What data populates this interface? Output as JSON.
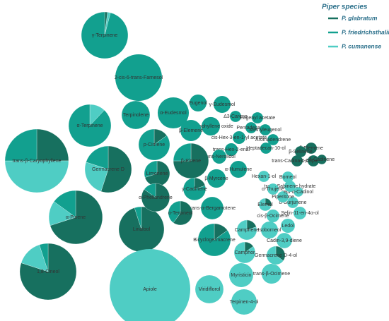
{
  "chart_data": {
    "type": "pie-bubbles",
    "legend_title": "Piper species",
    "legend_position": "top-right",
    "categories": [
      "γ-Terpinene",
      "2-cis-6-trans-Farnesol",
      "α-Terpinene",
      "trans-β-Caryophyllene",
      "Germacrene D",
      "α-Pinene",
      "1,8-Cineol",
      "Linalool",
      "Apiole",
      "Viridiflorol",
      "Terpinen-4-ol",
      "Myristicin",
      "trans-β-Ocimene",
      "Camphor",
      "Germacrene D-4-ol",
      "Cadin-3,9-diene",
      "Bicyclogermacrene",
      "Camphene",
      "Isoborneol",
      "Ledol",
      "Selin-11-en-4α-ol",
      "cis-β-Ocimene",
      "Elemol",
      "α-Gurjunene",
      "Piperitone",
      "epi-α-Cadinol",
      "trans-Sabinene hydrate",
      "α-Thujene",
      "Borneol",
      "Hexan-1-ol",
      "Eugenol",
      "γ-Eudesmol",
      "Terpinolene",
      "α-Eudesmol",
      "Δ3-Carene",
      "Eugenyl acetate",
      "Caryophyllene oxide",
      "Pentadecane",
      "Methyleugenol",
      "β-Elemene",
      "cis-Hex-3-en-1-yl acetate",
      "Aromadendrene",
      "p-Cimene",
      "trans-Hex-2-enal",
      "trans-Nerolidol",
      "Heptadecan-10-ol",
      "β-Pinene",
      "α-Humulene",
      "Limonene",
      "β-Myrcene",
      "α-Phellandrene",
      "γ-Cadinene",
      "trans-α-Bergamotene",
      "α-Terpineol",
      "δ-Elemene",
      "β-Selinene",
      "trans-Cadina-1,4-diene",
      "α-Copaene",
      "δ-Cadinene"
    ],
    "series": [
      {
        "name": "P. glabratum",
        "color": "#17705f",
        "values": [
          2,
          0,
          0,
          25,
          55,
          70,
          80,
          95,
          0,
          0,
          0,
          0,
          0,
          15,
          35,
          0,
          15,
          20,
          0,
          0,
          0,
          0,
          30,
          0,
          0,
          0,
          0,
          0,
          0,
          0,
          0,
          0,
          0,
          0,
          0,
          0,
          0,
          0,
          0,
          0,
          0,
          0,
          15,
          0,
          0,
          0,
          75,
          0,
          70,
          0,
          85,
          20,
          0,
          60,
          100,
          100,
          100,
          100,
          100
        ]
      },
      {
        "name": "P. friedrichsthalii",
        "color": "#12a08f",
        "values": [
          96,
          100,
          88,
          25,
          20,
          15,
          5,
          5,
          0,
          0,
          0,
          0,
          0,
          0,
          0,
          0,
          85,
          0,
          0,
          0,
          0,
          0,
          0,
          0,
          0,
          0,
          0,
          0,
          0,
          0,
          100,
          100,
          100,
          100,
          100,
          100,
          100,
          100,
          100,
          100,
          100,
          100,
          85,
          100,
          100,
          100,
          25,
          100,
          30,
          100,
          15,
          80,
          100,
          40,
          0,
          0,
          0,
          0,
          0
        ]
      },
      {
        "name": "P. cumanense",
        "color": "#4fcdc4",
        "values": [
          2,
          0,
          12,
          50,
          25,
          15,
          15,
          0,
          100,
          100,
          100,
          100,
          100,
          85,
          65,
          100,
          0,
          80,
          100,
          100,
          100,
          100,
          70,
          100,
          100,
          100,
          100,
          100,
          100,
          100,
          0,
          0,
          0,
          0,
          0,
          0,
          0,
          0,
          0,
          0,
          0,
          0,
          0,
          0,
          0,
          0,
          0,
          0,
          0,
          0,
          0,
          0,
          0,
          0,
          0,
          0,
          0,
          0,
          0
        ]
      }
    ],
    "sizes": [
      121,
      121,
      100,
      225,
      121,
      160,
      178,
      114,
      361,
      44,
      36,
      32,
      22,
      25,
      19,
      13,
      59,
      22,
      16,
      11,
      9,
      9,
      9,
      7,
      7,
      5,
      7,
      7,
      7,
      7,
      16,
      16,
      44,
      54,
      7,
      7,
      19,
      7,
      7,
      25,
      9,
      7,
      54,
      9,
      11,
      7,
      69,
      16,
      36,
      19,
      44,
      28,
      28,
      32,
      7,
      7,
      7,
      7,
      5
    ]
  }
}
